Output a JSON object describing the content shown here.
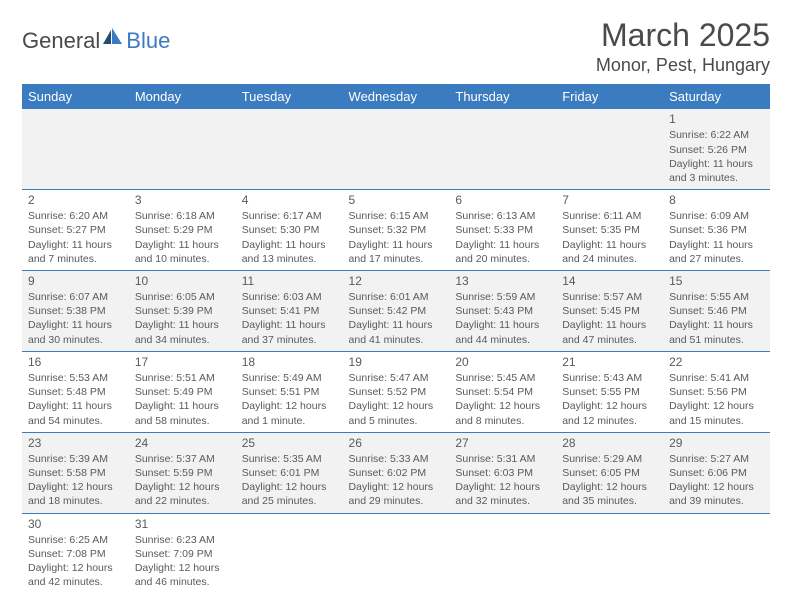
{
  "logo": {
    "part1": "General",
    "part2": "Blue"
  },
  "title": "March 2025",
  "location": "Monor, Pest, Hungary",
  "colors": {
    "header_bg": "#3b7bbf",
    "header_text": "#ffffff",
    "cell_bg_alt": "#f2f2f2",
    "cell_bg": "#ffffff",
    "border": "#3b7bbf",
    "text": "#5a5a5a"
  },
  "day_headers": [
    "Sunday",
    "Monday",
    "Tuesday",
    "Wednesday",
    "Thursday",
    "Friday",
    "Saturday"
  ],
  "weeks": [
    [
      null,
      null,
      null,
      null,
      null,
      null,
      {
        "n": "1",
        "sr": "Sunrise: 6:22 AM",
        "ss": "Sunset: 5:26 PM",
        "dl": "Daylight: 11 hours and 3 minutes."
      }
    ],
    [
      {
        "n": "2",
        "sr": "Sunrise: 6:20 AM",
        "ss": "Sunset: 5:27 PM",
        "dl": "Daylight: 11 hours and 7 minutes."
      },
      {
        "n": "3",
        "sr": "Sunrise: 6:18 AM",
        "ss": "Sunset: 5:29 PM",
        "dl": "Daylight: 11 hours and 10 minutes."
      },
      {
        "n": "4",
        "sr": "Sunrise: 6:17 AM",
        "ss": "Sunset: 5:30 PM",
        "dl": "Daylight: 11 hours and 13 minutes."
      },
      {
        "n": "5",
        "sr": "Sunrise: 6:15 AM",
        "ss": "Sunset: 5:32 PM",
        "dl": "Daylight: 11 hours and 17 minutes."
      },
      {
        "n": "6",
        "sr": "Sunrise: 6:13 AM",
        "ss": "Sunset: 5:33 PM",
        "dl": "Daylight: 11 hours and 20 minutes."
      },
      {
        "n": "7",
        "sr": "Sunrise: 6:11 AM",
        "ss": "Sunset: 5:35 PM",
        "dl": "Daylight: 11 hours and 24 minutes."
      },
      {
        "n": "8",
        "sr": "Sunrise: 6:09 AM",
        "ss": "Sunset: 5:36 PM",
        "dl": "Daylight: 11 hours and 27 minutes."
      }
    ],
    [
      {
        "n": "9",
        "sr": "Sunrise: 6:07 AM",
        "ss": "Sunset: 5:38 PM",
        "dl": "Daylight: 11 hours and 30 minutes."
      },
      {
        "n": "10",
        "sr": "Sunrise: 6:05 AM",
        "ss": "Sunset: 5:39 PM",
        "dl": "Daylight: 11 hours and 34 minutes."
      },
      {
        "n": "11",
        "sr": "Sunrise: 6:03 AM",
        "ss": "Sunset: 5:41 PM",
        "dl": "Daylight: 11 hours and 37 minutes."
      },
      {
        "n": "12",
        "sr": "Sunrise: 6:01 AM",
        "ss": "Sunset: 5:42 PM",
        "dl": "Daylight: 11 hours and 41 minutes."
      },
      {
        "n": "13",
        "sr": "Sunrise: 5:59 AM",
        "ss": "Sunset: 5:43 PM",
        "dl": "Daylight: 11 hours and 44 minutes."
      },
      {
        "n": "14",
        "sr": "Sunrise: 5:57 AM",
        "ss": "Sunset: 5:45 PM",
        "dl": "Daylight: 11 hours and 47 minutes."
      },
      {
        "n": "15",
        "sr": "Sunrise: 5:55 AM",
        "ss": "Sunset: 5:46 PM",
        "dl": "Daylight: 11 hours and 51 minutes."
      }
    ],
    [
      {
        "n": "16",
        "sr": "Sunrise: 5:53 AM",
        "ss": "Sunset: 5:48 PM",
        "dl": "Daylight: 11 hours and 54 minutes."
      },
      {
        "n": "17",
        "sr": "Sunrise: 5:51 AM",
        "ss": "Sunset: 5:49 PM",
        "dl": "Daylight: 11 hours and 58 minutes."
      },
      {
        "n": "18",
        "sr": "Sunrise: 5:49 AM",
        "ss": "Sunset: 5:51 PM",
        "dl": "Daylight: 12 hours and 1 minute."
      },
      {
        "n": "19",
        "sr": "Sunrise: 5:47 AM",
        "ss": "Sunset: 5:52 PM",
        "dl": "Daylight: 12 hours and 5 minutes."
      },
      {
        "n": "20",
        "sr": "Sunrise: 5:45 AM",
        "ss": "Sunset: 5:54 PM",
        "dl": "Daylight: 12 hours and 8 minutes."
      },
      {
        "n": "21",
        "sr": "Sunrise: 5:43 AM",
        "ss": "Sunset: 5:55 PM",
        "dl": "Daylight: 12 hours and 12 minutes."
      },
      {
        "n": "22",
        "sr": "Sunrise: 5:41 AM",
        "ss": "Sunset: 5:56 PM",
        "dl": "Daylight: 12 hours and 15 minutes."
      }
    ],
    [
      {
        "n": "23",
        "sr": "Sunrise: 5:39 AM",
        "ss": "Sunset: 5:58 PM",
        "dl": "Daylight: 12 hours and 18 minutes."
      },
      {
        "n": "24",
        "sr": "Sunrise: 5:37 AM",
        "ss": "Sunset: 5:59 PM",
        "dl": "Daylight: 12 hours and 22 minutes."
      },
      {
        "n": "25",
        "sr": "Sunrise: 5:35 AM",
        "ss": "Sunset: 6:01 PM",
        "dl": "Daylight: 12 hours and 25 minutes."
      },
      {
        "n": "26",
        "sr": "Sunrise: 5:33 AM",
        "ss": "Sunset: 6:02 PM",
        "dl": "Daylight: 12 hours and 29 minutes."
      },
      {
        "n": "27",
        "sr": "Sunrise: 5:31 AM",
        "ss": "Sunset: 6:03 PM",
        "dl": "Daylight: 12 hours and 32 minutes."
      },
      {
        "n": "28",
        "sr": "Sunrise: 5:29 AM",
        "ss": "Sunset: 6:05 PM",
        "dl": "Daylight: 12 hours and 35 minutes."
      },
      {
        "n": "29",
        "sr": "Sunrise: 5:27 AM",
        "ss": "Sunset: 6:06 PM",
        "dl": "Daylight: 12 hours and 39 minutes."
      }
    ],
    [
      {
        "n": "30",
        "sr": "Sunrise: 6:25 AM",
        "ss": "Sunset: 7:08 PM",
        "dl": "Daylight: 12 hours and 42 minutes."
      },
      {
        "n": "31",
        "sr": "Sunrise: 6:23 AM",
        "ss": "Sunset: 7:09 PM",
        "dl": "Daylight: 12 hours and 46 minutes."
      },
      null,
      null,
      null,
      null,
      null
    ]
  ]
}
